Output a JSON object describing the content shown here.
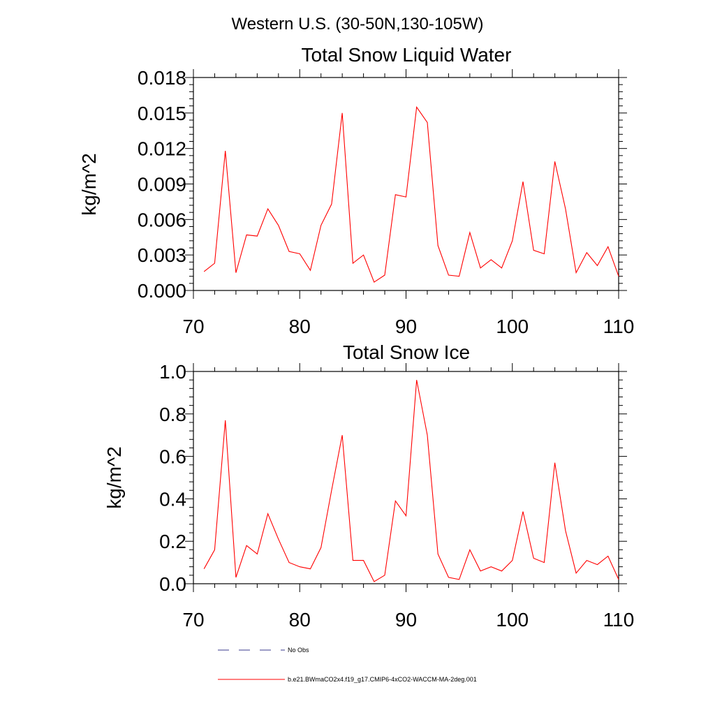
{
  "figure": {
    "region_title": "Western U.S. (30-50N,130-105W)"
  },
  "legend": {
    "obs_label": "No Obs",
    "obs_color": "#3a3a8c",
    "model_label": "b.e21.BWmaCO2x4.f19_g17.CMIP6-4xCO2-WACCM-MA-2deg.001",
    "model_color": "#ff0000"
  },
  "chart_data": [
    {
      "type": "line",
      "title": "Total Snow Liquid Water",
      "xlabel": "",
      "ylabel": "kg/m^2",
      "xlim": [
        70,
        110
      ],
      "ylim": [
        0,
        0.018
      ],
      "xticks": [
        70,
        80,
        90,
        100,
        110
      ],
      "xtick_labels": [
        "70",
        "80",
        "90",
        "100",
        "110"
      ],
      "yticks": [
        0,
        0.003,
        0.006,
        0.009,
        0.012,
        0.015,
        0.018
      ],
      "ytick_labels": [
        "0.000",
        "0.003",
        "0.006",
        "0.009",
        "0.012",
        "0.015",
        "0.018"
      ],
      "grid": false,
      "x": [
        71,
        72,
        73,
        74,
        75,
        76,
        77,
        78,
        79,
        80,
        81,
        82,
        83,
        84,
        85,
        86,
        87,
        88,
        89,
        90,
        91,
        92,
        93,
        94,
        95,
        96,
        97,
        98,
        99,
        100,
        101,
        102,
        103,
        104,
        105,
        106,
        107,
        108,
        109,
        110
      ],
      "series": [
        {
          "color": "#ff0000",
          "values": [
            0.0016,
            0.0023,
            0.0118,
            0.0015,
            0.0047,
            0.0046,
            0.0069,
            0.0055,
            0.0033,
            0.0031,
            0.0017,
            0.0055,
            0.0073,
            0.015,
            0.0023,
            0.003,
            0.0007,
            0.0013,
            0.0081,
            0.0079,
            0.0155,
            0.0142,
            0.0038,
            0.0013,
            0.0012,
            0.0049,
            0.0019,
            0.0026,
            0.0019,
            0.0042,
            0.0092,
            0.0034,
            0.0031,
            0.0109,
            0.0069,
            0.0015,
            0.0032,
            0.0021,
            0.0037,
            0.0012
          ]
        }
      ]
    },
    {
      "type": "line",
      "title": "Total Snow Ice",
      "xlabel": "",
      "ylabel": "kg/m^2",
      "xlim": [
        70,
        110
      ],
      "ylim": [
        0,
        1.0
      ],
      "xticks": [
        70,
        80,
        90,
        100,
        110
      ],
      "xtick_labels": [
        "70",
        "80",
        "90",
        "100",
        "110"
      ],
      "yticks": [
        0,
        0.2,
        0.4,
        0.6,
        0.8,
        1.0
      ],
      "ytick_labels": [
        "0.0",
        "0.2",
        "0.4",
        "0.6",
        "0.8",
        "1.0"
      ],
      "grid": false,
      "x": [
        71,
        72,
        73,
        74,
        75,
        76,
        77,
        78,
        79,
        80,
        81,
        82,
        83,
        84,
        85,
        86,
        87,
        88,
        89,
        90,
        91,
        92,
        93,
        94,
        95,
        96,
        97,
        98,
        99,
        100,
        101,
        102,
        103,
        104,
        105,
        106,
        107,
        108,
        109,
        110
      ],
      "series": [
        {
          "color": "#ff0000",
          "values": [
            0.07,
            0.16,
            0.77,
            0.03,
            0.18,
            0.14,
            0.33,
            0.21,
            0.1,
            0.08,
            0.07,
            0.17,
            0.44,
            0.7,
            0.11,
            0.11,
            0.01,
            0.04,
            0.39,
            0.32,
            0.96,
            0.7,
            0.14,
            0.03,
            0.02,
            0.16,
            0.06,
            0.08,
            0.06,
            0.11,
            0.34,
            0.12,
            0.1,
            0.57,
            0.25,
            0.05,
            0.11,
            0.09,
            0.13,
            0.02
          ]
        }
      ]
    }
  ]
}
